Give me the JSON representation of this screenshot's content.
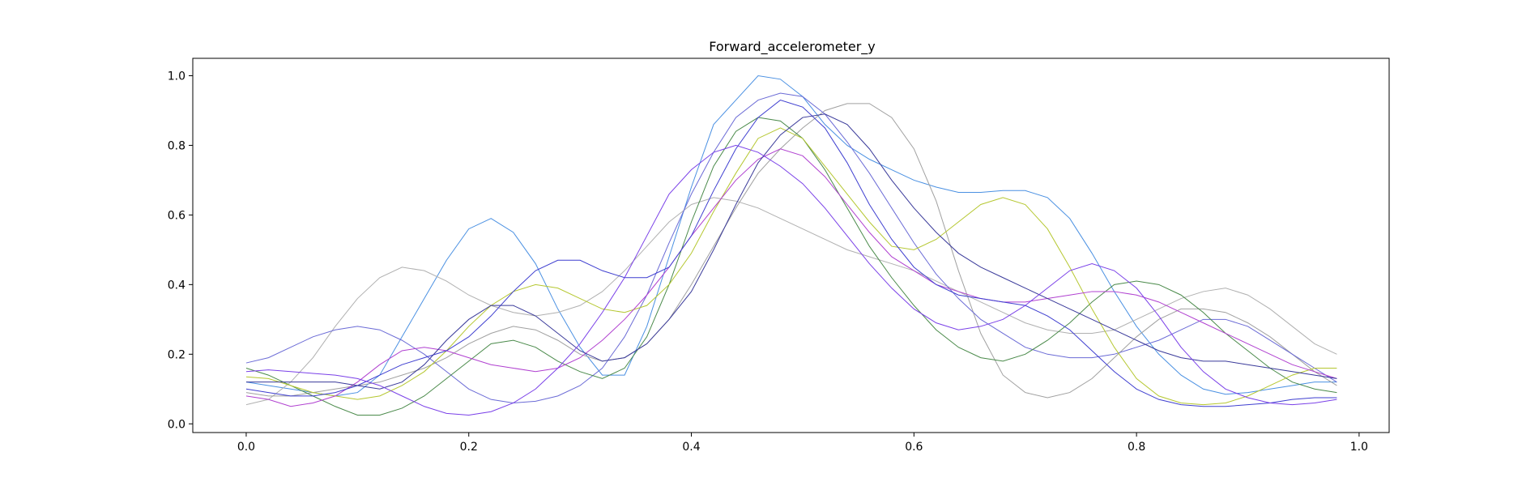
{
  "chart_data": {
    "type": "line",
    "title": "Forward_accelerometer_y",
    "xlabel": "",
    "ylabel": "",
    "xlim": [
      -0.048,
      1.027
    ],
    "ylim": [
      -0.025,
      1.05
    ],
    "xticks": [
      0.0,
      0.2,
      0.4,
      0.6,
      0.8,
      1.0
    ],
    "xtick_labels": [
      "0.0",
      "0.2",
      "0.4",
      "0.6",
      "0.8",
      "1.0"
    ],
    "yticks": [
      0.0,
      0.2,
      0.4,
      0.6,
      0.8,
      1.0
    ],
    "ytick_labels": [
      "0.0",
      "0.2",
      "0.4",
      "0.6",
      "0.8",
      "1.0"
    ],
    "grid": false,
    "x": [
      0.0,
      0.02,
      0.04,
      0.06,
      0.08,
      0.1,
      0.12,
      0.14,
      0.16,
      0.18,
      0.2,
      0.22,
      0.24,
      0.26,
      0.28,
      0.3,
      0.32,
      0.34,
      0.36,
      0.38,
      0.4,
      0.42,
      0.44,
      0.46,
      0.48,
      0.5,
      0.52,
      0.54,
      0.56,
      0.58,
      0.6,
      0.62,
      0.64,
      0.66,
      0.68,
      0.7,
      0.72,
      0.74,
      0.76,
      0.78,
      0.8,
      0.82,
      0.84,
      0.86,
      0.88,
      0.9,
      0.92,
      0.94,
      0.96,
      0.98
    ],
    "series": [
      {
        "color": "#4a90e2",
        "values": [
          0.12,
          0.11,
          0.1,
          0.09,
          0.08,
          0.09,
          0.14,
          0.25,
          0.36,
          0.47,
          0.56,
          0.59,
          0.55,
          0.46,
          0.33,
          0.22,
          0.14,
          0.14,
          0.28,
          0.48,
          0.68,
          0.86,
          0.93,
          1.0,
          0.99,
          0.94,
          0.86,
          0.8,
          0.76,
          0.73,
          0.7,
          0.68,
          0.665,
          0.665,
          0.67,
          0.67,
          0.65,
          0.59,
          0.49,
          0.38,
          0.28,
          0.2,
          0.14,
          0.1,
          0.085,
          0.09,
          0.1,
          0.11,
          0.12,
          0.12
        ]
      },
      {
        "color": "#b0b0b0",
        "values": [
          0.055,
          0.07,
          0.12,
          0.19,
          0.28,
          0.36,
          0.42,
          0.45,
          0.44,
          0.41,
          0.37,
          0.34,
          0.32,
          0.31,
          0.32,
          0.34,
          0.38,
          0.44,
          0.51,
          0.58,
          0.63,
          0.65,
          0.64,
          0.62,
          0.59,
          0.56,
          0.53,
          0.5,
          0.48,
          0.46,
          0.44,
          0.41,
          0.38,
          0.35,
          0.32,
          0.29,
          0.27,
          0.26,
          0.26,
          0.27,
          0.3,
          0.33,
          0.36,
          0.38,
          0.39,
          0.37,
          0.33,
          0.28,
          0.23,
          0.2
        ]
      },
      {
        "color": "#a0a0a0",
        "values": [
          0.09,
          0.08,
          0.08,
          0.09,
          0.1,
          0.11,
          0.12,
          0.14,
          0.16,
          0.19,
          0.23,
          0.26,
          0.28,
          0.27,
          0.24,
          0.2,
          0.18,
          0.19,
          0.23,
          0.3,
          0.4,
          0.51,
          0.62,
          0.72,
          0.79,
          0.85,
          0.9,
          0.92,
          0.92,
          0.88,
          0.79,
          0.64,
          0.44,
          0.26,
          0.14,
          0.09,
          0.075,
          0.09,
          0.13,
          0.19,
          0.25,
          0.3,
          0.33,
          0.33,
          0.32,
          0.29,
          0.25,
          0.2,
          0.15,
          0.11
        ]
      },
      {
        "color": "#6b6bd6",
        "values": [
          0.175,
          0.19,
          0.22,
          0.25,
          0.27,
          0.28,
          0.27,
          0.24,
          0.2,
          0.15,
          0.1,
          0.07,
          0.06,
          0.065,
          0.08,
          0.11,
          0.16,
          0.25,
          0.37,
          0.52,
          0.66,
          0.78,
          0.88,
          0.93,
          0.95,
          0.94,
          0.89,
          0.81,
          0.72,
          0.62,
          0.52,
          0.43,
          0.36,
          0.3,
          0.26,
          0.22,
          0.2,
          0.19,
          0.19,
          0.2,
          0.22,
          0.24,
          0.27,
          0.3,
          0.3,
          0.28,
          0.24,
          0.2,
          0.16,
          0.12
        ]
      },
      {
        "color": "#4a8a4a",
        "values": [
          0.16,
          0.14,
          0.11,
          0.08,
          0.05,
          0.025,
          0.025,
          0.045,
          0.08,
          0.13,
          0.18,
          0.23,
          0.24,
          0.22,
          0.18,
          0.15,
          0.13,
          0.16,
          0.25,
          0.4,
          0.58,
          0.74,
          0.84,
          0.88,
          0.87,
          0.82,
          0.73,
          0.62,
          0.51,
          0.42,
          0.34,
          0.27,
          0.22,
          0.19,
          0.18,
          0.2,
          0.24,
          0.29,
          0.35,
          0.4,
          0.41,
          0.4,
          0.37,
          0.32,
          0.26,
          0.21,
          0.16,
          0.12,
          0.1,
          0.09
        ]
      },
      {
        "color": "#b5c730",
        "values": [
          0.135,
          0.13,
          0.11,
          0.09,
          0.08,
          0.07,
          0.08,
          0.11,
          0.15,
          0.21,
          0.28,
          0.34,
          0.38,
          0.4,
          0.39,
          0.36,
          0.33,
          0.32,
          0.34,
          0.4,
          0.49,
          0.61,
          0.72,
          0.82,
          0.85,
          0.82,
          0.74,
          0.66,
          0.58,
          0.51,
          0.5,
          0.53,
          0.58,
          0.63,
          0.65,
          0.63,
          0.56,
          0.45,
          0.33,
          0.22,
          0.13,
          0.08,
          0.06,
          0.055,
          0.06,
          0.08,
          0.11,
          0.14,
          0.16,
          0.16
        ]
      },
      {
        "color": "#b040d0",
        "values": [
          0.08,
          0.07,
          0.05,
          0.06,
          0.08,
          0.12,
          0.17,
          0.21,
          0.22,
          0.21,
          0.19,
          0.17,
          0.16,
          0.15,
          0.16,
          0.19,
          0.24,
          0.3,
          0.37,
          0.45,
          0.54,
          0.62,
          0.7,
          0.76,
          0.79,
          0.77,
          0.71,
          0.63,
          0.55,
          0.48,
          0.44,
          0.4,
          0.38,
          0.36,
          0.35,
          0.35,
          0.36,
          0.37,
          0.38,
          0.38,
          0.37,
          0.35,
          0.32,
          0.29,
          0.26,
          0.23,
          0.2,
          0.17,
          0.15,
          0.13
        ]
      },
      {
        "color": "#3f3fd0",
        "values": [
          0.1,
          0.09,
          0.08,
          0.08,
          0.09,
          0.11,
          0.14,
          0.17,
          0.19,
          0.21,
          0.25,
          0.31,
          0.38,
          0.44,
          0.47,
          0.47,
          0.44,
          0.42,
          0.42,
          0.45,
          0.54,
          0.67,
          0.79,
          0.88,
          0.93,
          0.91,
          0.85,
          0.75,
          0.63,
          0.53,
          0.45,
          0.4,
          0.37,
          0.36,
          0.35,
          0.34,
          0.31,
          0.27,
          0.21,
          0.15,
          0.1,
          0.07,
          0.055,
          0.05,
          0.05,
          0.055,
          0.06,
          0.07,
          0.075,
          0.075
        ]
      },
      {
        "color": "#3a3a9a",
        "values": [
          0.12,
          0.12,
          0.12,
          0.12,
          0.12,
          0.11,
          0.1,
          0.12,
          0.17,
          0.24,
          0.3,
          0.34,
          0.34,
          0.31,
          0.26,
          0.21,
          0.18,
          0.19,
          0.23,
          0.3,
          0.38,
          0.5,
          0.63,
          0.75,
          0.83,
          0.88,
          0.89,
          0.86,
          0.79,
          0.7,
          0.62,
          0.55,
          0.49,
          0.45,
          0.42,
          0.39,
          0.36,
          0.33,
          0.3,
          0.27,
          0.24,
          0.21,
          0.19,
          0.18,
          0.18,
          0.17,
          0.16,
          0.15,
          0.14,
          0.13
        ]
      },
      {
        "color": "#7a40e8",
        "values": [
          0.15,
          0.155,
          0.15,
          0.145,
          0.14,
          0.13,
          0.11,
          0.08,
          0.05,
          0.03,
          0.025,
          0.035,
          0.06,
          0.1,
          0.16,
          0.23,
          0.32,
          0.42,
          0.54,
          0.66,
          0.73,
          0.78,
          0.8,
          0.78,
          0.74,
          0.69,
          0.62,
          0.54,
          0.46,
          0.39,
          0.33,
          0.29,
          0.27,
          0.28,
          0.3,
          0.34,
          0.39,
          0.44,
          0.46,
          0.44,
          0.39,
          0.31,
          0.22,
          0.15,
          0.1,
          0.075,
          0.06,
          0.055,
          0.06,
          0.07
        ]
      }
    ]
  }
}
